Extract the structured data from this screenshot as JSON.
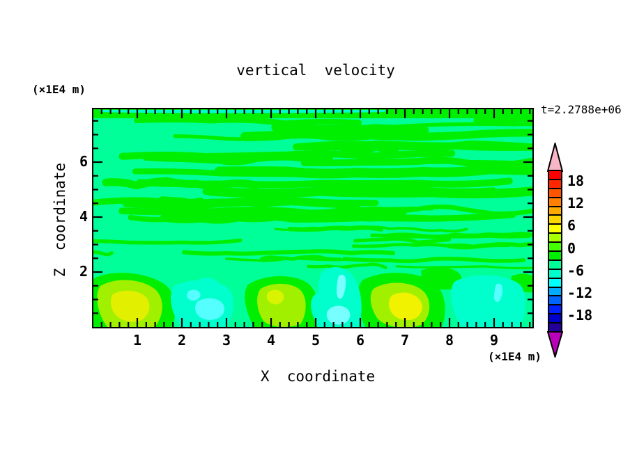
{
  "chart_data": {
    "type": "heatmap",
    "subtype": "filled-contour",
    "title": "vertical  velocity",
    "time_label": "t=2.2788e+06",
    "xlabel": "X  coordinate",
    "ylabel": "Z  coordinate",
    "x_units_label": "(×1E4 m)",
    "y_units_label": "(×1E4 m)",
    "xlim": [
      0,
      9.85
    ],
    "ylim": [
      0,
      7.9
    ],
    "x_ticks": [
      1,
      2,
      3,
      4,
      5,
      6,
      7,
      8,
      9
    ],
    "x_minor_step": 0.2,
    "y_ticks": [
      2,
      4,
      6
    ],
    "y_minor_step": 0.5,
    "grid": false,
    "legend_position": "colorbar-right",
    "colorbar": {
      "tick_labels": [
        "18",
        "12",
        "6",
        "0",
        "-6",
        "-12",
        "-18"
      ],
      "contour_interval": 2.4,
      "range": [
        -21.6,
        21.6
      ],
      "colors_top_to_bottom": [
        "#ff0000",
        "#ff2600",
        "#ff5500",
        "#ff8000",
        "#ffaa00",
        "#ffd500",
        "#ffff00",
        "#aaff00",
        "#44ff00",
        "#00ee00",
        "#00ff99",
        "#00ffcc",
        "#00ffff",
        "#00aaff",
        "#0066ff",
        "#0022ff",
        "#0000cc",
        "#220099"
      ],
      "over_arrow_color": "#f7b6c5",
      "under_arrow_color": "#bb00bb"
    },
    "field_colors": {
      "background_level": "#00ff99",
      "positive_streaks": "#00ee00",
      "updraft_ring": "#a0f000",
      "updraft_core_soft": "#e2f000",
      "updraft_core_bright": "#f0f200",
      "downdraft_outer": "#00ffcc",
      "downdraft_core": "#55ffff",
      "downdraft_core_light": "#77ffff"
    },
    "features": [
      {
        "type": "updraft-plume",
        "x": 0.75,
        "z": 1.0,
        "peak_value": 8
      },
      {
        "type": "downdraft",
        "x": 2.5,
        "z": 0.8,
        "peak_value": -5
      },
      {
        "type": "updraft-plume",
        "x": 4.3,
        "z": 0.9,
        "peak_value": 7
      },
      {
        "type": "downdraft",
        "x": 5.4,
        "z": 0.9,
        "peak_value": -6
      },
      {
        "type": "updraft-plume",
        "x": 6.9,
        "z": 0.8,
        "peak_value": 8
      },
      {
        "type": "downdraft",
        "x": 8.8,
        "z": 1.0,
        "peak_value": -5
      },
      {
        "type": "striated-shear-layer",
        "x_range": [
          0,
          9.85
        ],
        "z_range": [
          1.8,
          7.9
        ],
        "value_range": [
          -2.4,
          2.4
        ]
      }
    ]
  }
}
